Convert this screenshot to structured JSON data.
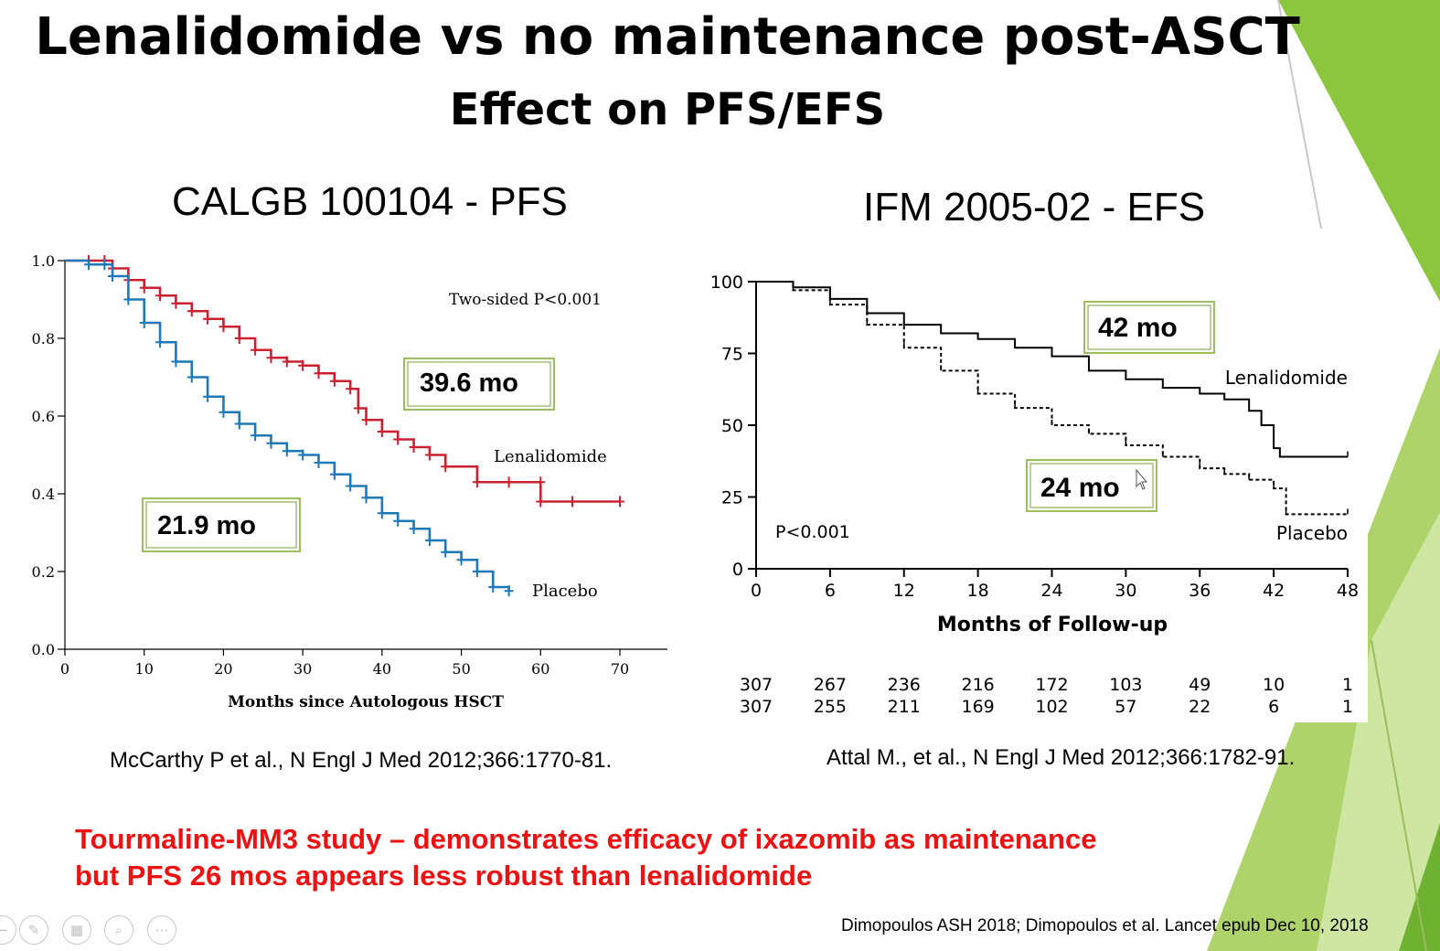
{
  "slide": {
    "title": "Lenalidomide vs no maintenance post-ASCT",
    "subtitle": "Effect on PFS/EFS",
    "highlight_line1": "Tourmaline-MM3 study – demonstrates efficacy of ixazomib as maintenance",
    "highlight_line2": "but PFS 26 mos appears less robust than lenalidomide",
    "reference": "Dimopoulos ASH 2018; Dimopoulos et al. Lancet epub Dec 10, 2018",
    "accent_color": "#ee1111",
    "theme_green": "#8cc63f"
  },
  "presenter_controls": [
    {
      "name": "back-arrow-icon",
      "glyph": "←"
    },
    {
      "name": "pen-icon",
      "glyph": "✎"
    },
    {
      "name": "slides-grid-icon",
      "glyph": "▦"
    },
    {
      "name": "zoom-icon",
      "glyph": "⌕"
    },
    {
      "name": "more-options-icon",
      "glyph": "⋯"
    }
  ],
  "chart_data": [
    {
      "type": "line",
      "title": "CALGB 100104 - PFS",
      "xlabel": "Months since Autologous HSCT",
      "ylabel": "",
      "xlim": [
        0,
        70
      ],
      "ylim": [
        0,
        1.0
      ],
      "xticks": [
        "0",
        "10",
        "20",
        "30",
        "40",
        "50",
        "60",
        "70"
      ],
      "yticks": [
        "0.0",
        "0.2",
        "0.4",
        "0.6",
        "0.8",
        "1.0"
      ],
      "annotation": "Two-sided P<0.001",
      "citation": "McCarthy P et al., N Engl J Med 2012;366:1770-81.",
      "callouts": [
        {
          "text": "39.6 mo",
          "series": "Lenalidomide"
        },
        {
          "text": "21.9 mo",
          "series": "Placebo"
        }
      ],
      "series": [
        {
          "name": "Lenalidomide",
          "color": "#cc2030",
          "x": [
            0,
            3,
            5,
            6,
            8,
            10,
            12,
            14,
            16,
            18,
            20,
            22,
            24,
            26,
            28,
            30,
            32,
            34,
            36,
            37,
            38,
            40,
            42,
            44,
            46,
            48,
            52,
            56,
            60,
            60,
            64,
            70
          ],
          "y": [
            1.0,
            1.0,
            1.0,
            0.98,
            0.95,
            0.93,
            0.91,
            0.89,
            0.87,
            0.85,
            0.83,
            0.8,
            0.77,
            0.75,
            0.74,
            0.73,
            0.71,
            0.69,
            0.67,
            0.62,
            0.59,
            0.56,
            0.54,
            0.52,
            0.5,
            0.47,
            0.43,
            0.43,
            0.43,
            0.38,
            0.38,
            0.38
          ]
        },
        {
          "name": "Placebo",
          "color": "#1f78b8",
          "x": [
            0,
            3,
            5,
            6,
            8,
            10,
            12,
            14,
            16,
            18,
            20,
            22,
            24,
            26,
            28,
            30,
            32,
            34,
            36,
            38,
            40,
            42,
            44,
            46,
            48,
            50,
            52,
            54,
            56
          ],
          "y": [
            1.0,
            0.99,
            0.99,
            0.96,
            0.9,
            0.84,
            0.79,
            0.74,
            0.7,
            0.65,
            0.61,
            0.58,
            0.55,
            0.53,
            0.51,
            0.5,
            0.48,
            0.45,
            0.42,
            0.39,
            0.35,
            0.33,
            0.31,
            0.28,
            0.25,
            0.23,
            0.2,
            0.16,
            0.15
          ]
        }
      ],
      "grid": false,
      "legend": "inline labels"
    },
    {
      "type": "line",
      "title": "IFM 2005-02 - EFS",
      "xlabel": "Months of Follow-up",
      "ylabel": "",
      "xlim": [
        0,
        48
      ],
      "ylim": [
        0,
        100
      ],
      "xticks": [
        "0",
        "6",
        "12",
        "18",
        "24",
        "30",
        "36",
        "42",
        "48"
      ],
      "yticks": [
        "0",
        "25",
        "50",
        "75",
        "100"
      ],
      "annotation": "P<0.001",
      "citation": "Attal M., et al., N Engl J Med 2012;366:1782-91.",
      "callouts": [
        {
          "text": "42 mo",
          "series": "Lenalidomide"
        },
        {
          "text": "24 mo",
          "series": "Placebo"
        }
      ],
      "at_risk": [
        [
          "307",
          "267",
          "236",
          "216",
          "172",
          "103",
          "49",
          "10",
          "1"
        ],
        [
          "307",
          "255",
          "211",
          "169",
          "102",
          "57",
          "22",
          "6",
          "1"
        ]
      ],
      "series": [
        {
          "name": "Lenalidomide",
          "color": "#000000",
          "dash": "solid",
          "x": [
            0,
            3,
            6,
            9,
            12,
            15,
            18,
            21,
            24,
            27,
            30,
            33,
            36,
            38,
            40,
            41,
            42,
            42.5,
            48
          ],
          "y": [
            100,
            98,
            94,
            89,
            85,
            82,
            80,
            77,
            74,
            69,
            66,
            63,
            61,
            59,
            55,
            50,
            42,
            39,
            39
          ]
        },
        {
          "name": "Placebo",
          "color": "#000000",
          "dash": "dashed",
          "x": [
            0,
            3,
            6,
            9,
            12,
            15,
            18,
            21,
            24,
            27,
            30,
            33,
            36,
            38,
            40,
            42,
            43,
            48
          ],
          "y": [
            100,
            97,
            92,
            85,
            77,
            69,
            61,
            56,
            50,
            47,
            43,
            39,
            35,
            33,
            31,
            28,
            19,
            19
          ]
        }
      ],
      "grid": false,
      "legend": "inline labels"
    }
  ]
}
